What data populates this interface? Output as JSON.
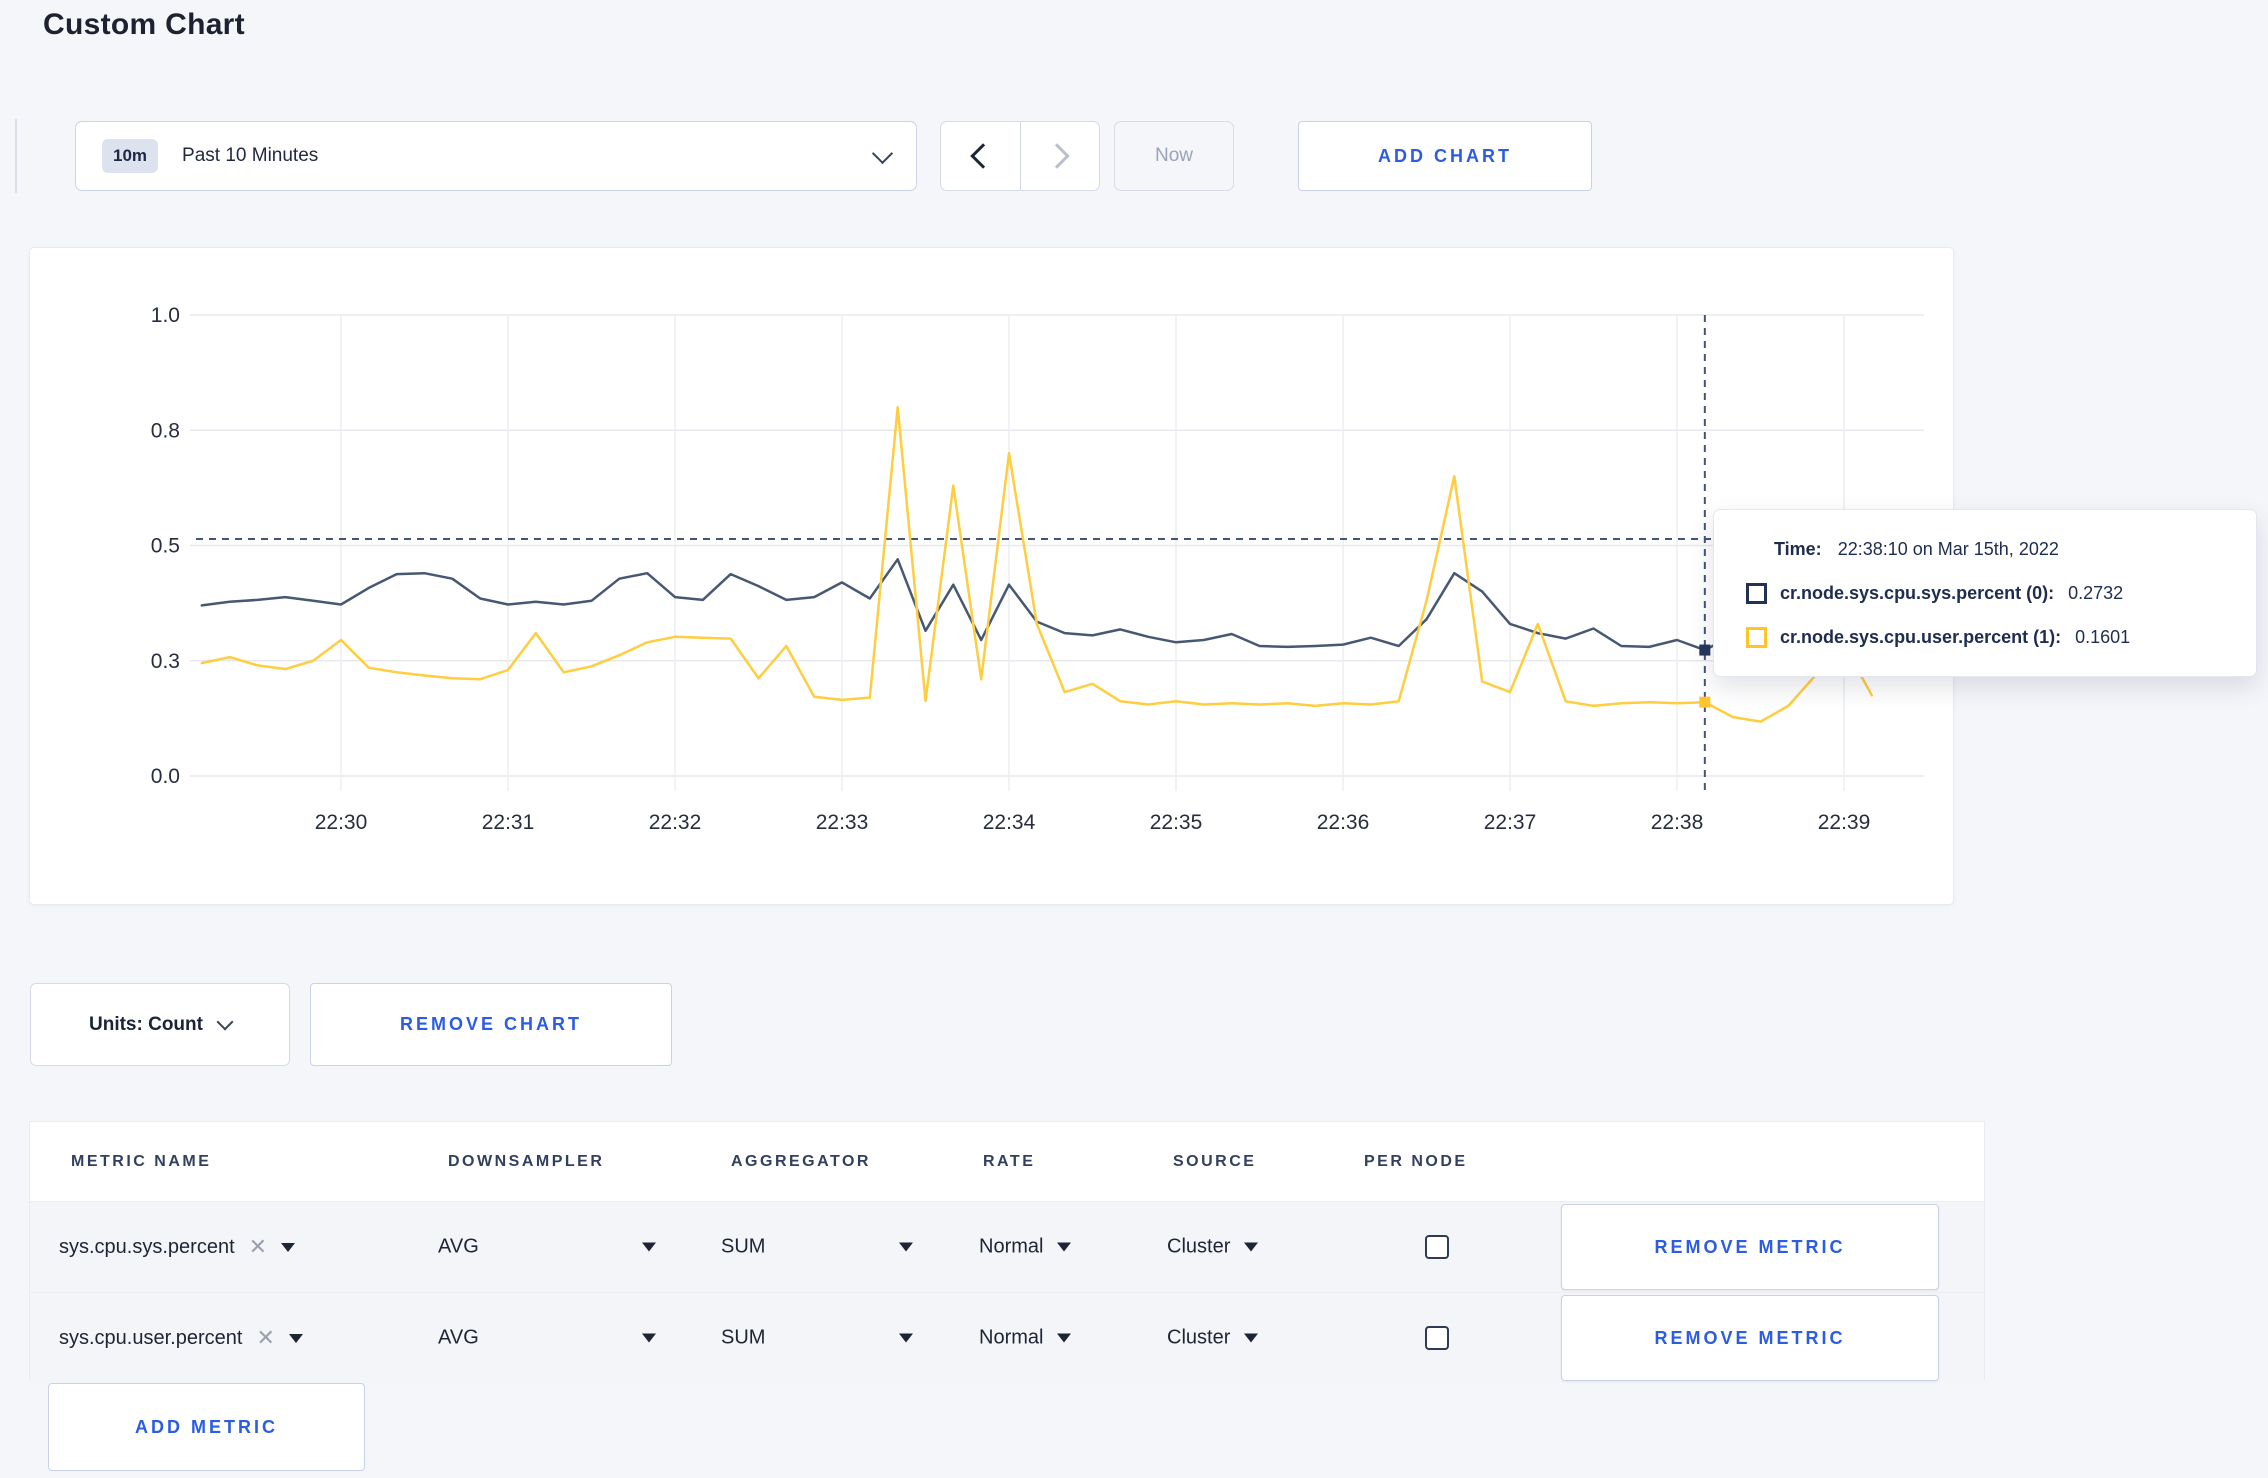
{
  "header": {
    "title": "Custom Chart"
  },
  "toolbar": {
    "range_badge": "10m",
    "range_label": "Past 10 Minutes",
    "now_label": "Now",
    "add_chart_label": "ADD CHART"
  },
  "chart_footer": {
    "units_label": "Units: Count",
    "remove_chart_label": "REMOVE CHART"
  },
  "tooltip": {
    "time_label": "Time:",
    "time_value": "22:38:10 on Mar 15th, 2022",
    "rows": [
      {
        "name": "cr.node.sys.cpu.sys.percent (0):",
        "value": "0.2732",
        "color": "#223154"
      },
      {
        "name": "cr.node.sys.cpu.user.percent (1):",
        "value": "0.1601",
        "color": "#ffc425"
      }
    ]
  },
  "table": {
    "headers": [
      "METRIC NAME",
      "DOWNSAMPLER",
      "AGGREGATOR",
      "RATE",
      "SOURCE",
      "PER NODE"
    ],
    "rows": [
      {
        "metric": "sys.cpu.sys.percent",
        "downsampler": "AVG",
        "aggregator": "SUM",
        "rate": "Normal",
        "source": "Cluster",
        "per_node_checked": false,
        "remove_label": "REMOVE METRIC"
      },
      {
        "metric": "sys.cpu.user.percent",
        "downsampler": "AVG",
        "aggregator": "SUM",
        "rate": "Normal",
        "source": "Cluster",
        "per_node_checked": false,
        "remove_label": "REMOVE METRIC"
      }
    ],
    "add_metric_label": "ADD METRIC"
  },
  "chart_data": {
    "type": "line",
    "title": "",
    "xlabel": "",
    "ylabel": "",
    "ylim": [
      0,
      1
    ],
    "grid": true,
    "x_window": [
      "22:29:10",
      "22:39:10"
    ],
    "sample_interval_seconds": 10,
    "x_start_min": -0.833333,
    "x_step_min": 0.166667,
    "x_ticks": [
      "22:30",
      "22:31",
      "22:32",
      "22:33",
      "22:34",
      "22:35",
      "22:36",
      "22:37",
      "22:38",
      "22:39"
    ],
    "y_ticks": [
      {
        "v": 0.0,
        "label": "0.0"
      },
      {
        "v": 0.25,
        "label": "0.3"
      },
      {
        "v": 0.5,
        "label": "0.5"
      },
      {
        "v": 0.75,
        "label": "0.8"
      },
      {
        "v": 1.0,
        "label": "1.0"
      }
    ],
    "series": [
      {
        "name": "cr.node.sys.cpu.sys.percent (0)",
        "color": "#475872",
        "values": [
          0.37,
          0.378,
          0.382,
          0.388,
          0.38,
          0.372,
          0.408,
          0.438,
          0.44,
          0.428,
          0.385,
          0.372,
          0.378,
          0.372,
          0.38,
          0.428,
          0.44,
          0.388,
          0.382,
          0.438,
          0.412,
          0.382,
          0.388,
          0.42,
          0.385,
          0.47,
          0.315,
          0.415,
          0.295,
          0.415,
          0.335,
          0.31,
          0.305,
          0.318,
          0.302,
          0.29,
          0.295,
          0.308,
          0.282,
          0.28,
          0.282,
          0.285,
          0.3,
          0.282,
          0.34,
          0.44,
          0.4,
          0.33,
          0.31,
          0.298,
          0.32,
          0.282,
          0.28,
          0.295,
          0.273,
          0.305,
          0.298,
          0.31,
          0.3,
          0.302,
          0.3
        ]
      },
      {
        "name": "cr.node.sys.cpu.user.percent (1)",
        "color": "#ffcd40",
        "values": [
          0.245,
          0.258,
          0.24,
          0.232,
          0.25,
          0.295,
          0.235,
          0.225,
          0.218,
          0.212,
          0.21,
          0.23,
          0.31,
          0.225,
          0.238,
          0.262,
          0.29,
          0.302,
          0.3,
          0.298,
          0.212,
          0.282,
          0.172,
          0.165,
          0.17,
          0.8,
          0.163,
          0.63,
          0.21,
          0.7,
          0.33,
          0.182,
          0.2,
          0.162,
          0.155,
          0.162,
          0.155,
          0.158,
          0.155,
          0.158,
          0.152,
          0.158,
          0.155,
          0.162,
          0.38,
          0.65,
          0.205,
          0.182,
          0.33,
          0.162,
          0.152,
          0.158,
          0.16,
          0.158,
          0.16,
          0.128,
          0.118,
          0.152,
          0.22,
          0.285,
          0.175
        ]
      }
    ],
    "hover": {
      "time": "22:38:10",
      "x_min": 8.166667,
      "guide_value": 0.514,
      "points": [
        {
          "value": 0.2732,
          "color": "#26365a"
        },
        {
          "value": 0.1601,
          "color": "#ffc531"
        }
      ]
    },
    "legend_position": "tooltip"
  }
}
